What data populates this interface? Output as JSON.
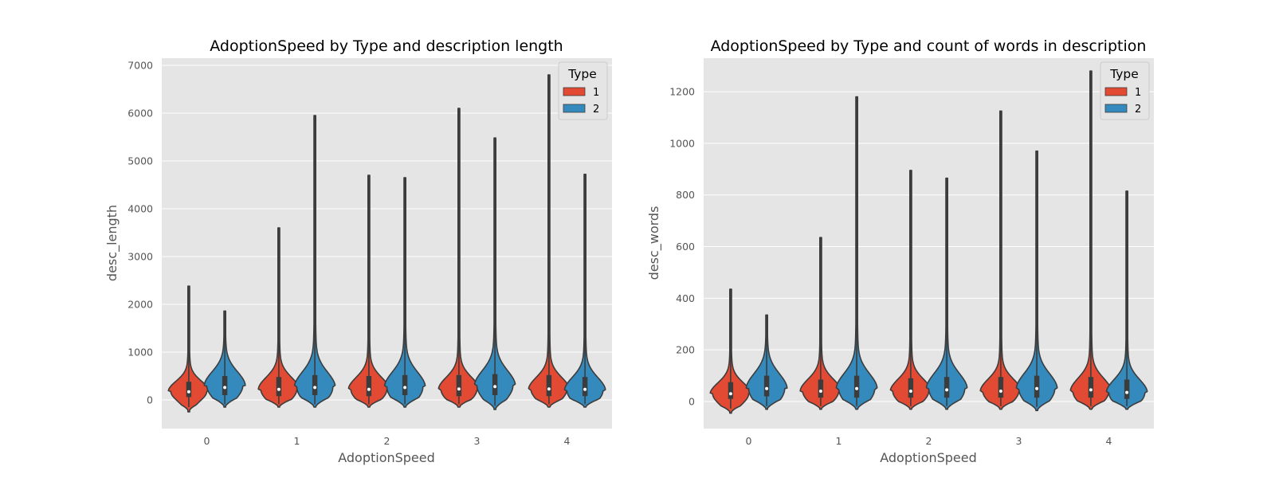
{
  "chart_data": [
    {
      "type": "violin",
      "title": "AdoptionSpeed by Type and description length",
      "xlabel": "AdoptionSpeed",
      "ylabel": "desc_length",
      "categories": [
        "0",
        "1",
        "2",
        "3",
        "4"
      ],
      "ylim": [
        -600,
        7150
      ],
      "yticks": [
        "0",
        "1000",
        "2000",
        "3000",
        "4000",
        "5000",
        "6000",
        "7000"
      ],
      "grid": true,
      "legend": {
        "title": "Type",
        "placement": "top-right",
        "entries": [
          "1",
          "2"
        ]
      },
      "series": [
        {
          "name": "1",
          "color": "#E24A33",
          "stats": [
            {
              "min": -250,
              "q1": 60,
              "median": 170,
              "q3": 380,
              "max": 2380,
              "bulge": 550,
              "mode": 180
            },
            {
              "min": -150,
              "q1": 80,
              "median": 220,
              "q3": 480,
              "max": 3600,
              "bulge": 650,
              "mode": 220
            },
            {
              "min": -150,
              "q1": 80,
              "median": 220,
              "q3": 500,
              "max": 4700,
              "bulge": 650,
              "mode": 220
            },
            {
              "min": -150,
              "q1": 80,
              "median": 230,
              "q3": 520,
              "max": 6100,
              "bulge": 650,
              "mode": 220
            },
            {
              "min": -150,
              "q1": 80,
              "median": 230,
              "q3": 520,
              "max": 6800,
              "bulge": 650,
              "mode": 220
            }
          ]
        },
        {
          "name": "2",
          "color": "#348ABD",
          "stats": [
            {
              "min": -150,
              "q1": 100,
              "median": 260,
              "q3": 500,
              "max": 1860,
              "bulge": 750,
              "mode": 300
            },
            {
              "min": -150,
              "q1": 100,
              "median": 260,
              "q3": 520,
              "max": 5950,
              "bulge": 800,
              "mode": 270
            },
            {
              "min": -150,
              "q1": 100,
              "median": 260,
              "q3": 520,
              "max": 4650,
              "bulge": 800,
              "mode": 270
            },
            {
              "min": -200,
              "q1": 100,
              "median": 280,
              "q3": 540,
              "max": 5480,
              "bulge": 800,
              "mode": 300
            },
            {
              "min": -150,
              "q1": 80,
              "median": 220,
              "q3": 480,
              "max": 4720,
              "bulge": 700,
              "mode": 200
            }
          ]
        }
      ]
    },
    {
      "type": "violin",
      "title": "AdoptionSpeed by Type and count of words in description",
      "xlabel": "AdoptionSpeed",
      "ylabel": "desc_words",
      "categories": [
        "0",
        "1",
        "2",
        "3",
        "4"
      ],
      "ylim": [
        -105,
        1330
      ],
      "yticks": [
        "0",
        "200",
        "400",
        "600",
        "800",
        "1000",
        "1200"
      ],
      "grid": true,
      "legend": {
        "title": "Type",
        "placement": "top-right",
        "entries": [
          "1",
          "2"
        ]
      },
      "series": [
        {
          "name": "1",
          "color": "#E24A33",
          "stats": [
            {
              "min": -45,
              "q1": 10,
              "median": 30,
              "q3": 75,
              "max": 435,
              "bulge": 110,
              "mode": 30
            },
            {
              "min": -30,
              "q1": 15,
              "median": 40,
              "q3": 85,
              "max": 635,
              "bulge": 120,
              "mode": 40
            },
            {
              "min": -30,
              "q1": 15,
              "median": 40,
              "q3": 90,
              "max": 895,
              "bulge": 120,
              "mode": 40
            },
            {
              "min": -30,
              "q1": 15,
              "median": 40,
              "q3": 95,
              "max": 1125,
              "bulge": 120,
              "mode": 40
            },
            {
              "min": -30,
              "q1": 15,
              "median": 45,
              "q3": 95,
              "max": 1280,
              "bulge": 130,
              "mode": 40
            }
          ]
        },
        {
          "name": "2",
          "color": "#348ABD",
          "stats": [
            {
              "min": -30,
              "q1": 20,
              "median": 50,
              "q3": 100,
              "max": 335,
              "bulge": 150,
              "mode": 50
            },
            {
              "min": -30,
              "q1": 15,
              "median": 50,
              "q3": 100,
              "max": 1180,
              "bulge": 150,
              "mode": 50
            },
            {
              "min": -30,
              "q1": 15,
              "median": 45,
              "q3": 95,
              "max": 865,
              "bulge": 150,
              "mode": 50
            },
            {
              "min": -35,
              "q1": 15,
              "median": 50,
              "q3": 100,
              "max": 970,
              "bulge": 150,
              "mode": 50
            },
            {
              "min": -30,
              "q1": 10,
              "median": 35,
              "q3": 85,
              "max": 815,
              "bulge": 130,
              "mode": 35
            }
          ]
        }
      ]
    }
  ]
}
